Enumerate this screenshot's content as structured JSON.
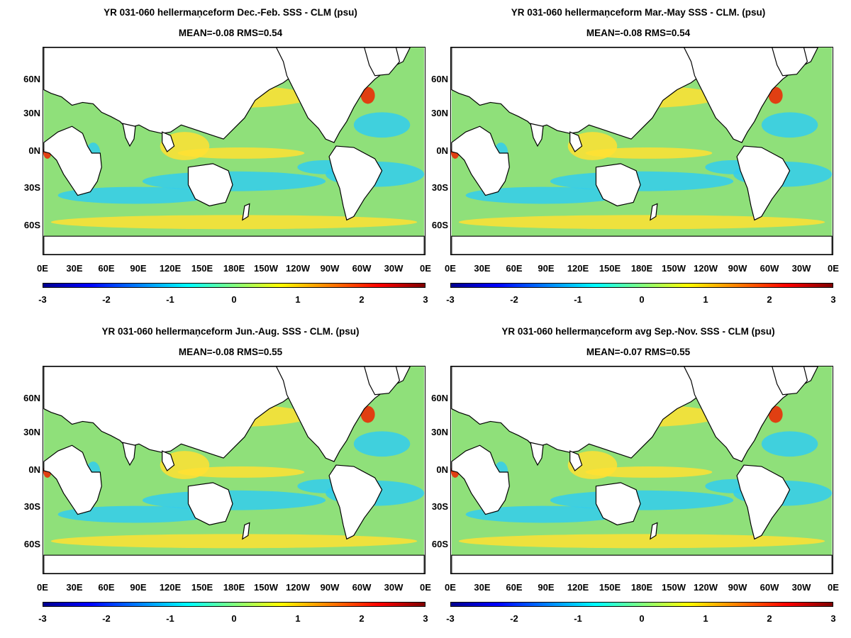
{
  "panels": [
    {
      "title": "YR 031-060 hellermaṇceform  Dec.-Feb. SSS - CLM (psu)",
      "stats": "MEAN=-0.08   RMS=0.54"
    },
    {
      "title": "YR 031-060 hellermaṇceform Mar.-May SSS - CLM. (psu)",
      "stats": "MEAN=-0.08   RMS=0.54"
    },
    {
      "title": "YR 031-060 hellermaṇceform Jun.-Aug. SSS - CLM. (psu)",
      "stats": "MEAN=-0.08   RMS=0.55"
    },
    {
      "title": "YR 031-060 hellermaṇceform avg Sep.-Nov. SSS - CLM (psu)",
      "stats": "MEAN=-0.07   RMS=0.55"
    }
  ],
  "lat_labels": [
    "60N",
    "30N",
    "0N",
    "30S",
    "60S"
  ],
  "lon_labels": [
    "0E",
    "30E",
    "60E",
    "90E",
    "120E",
    "150E",
    "180E",
    "150W",
    "120W",
    "90W",
    "60W",
    "30W",
    "0E"
  ],
  "colorbar_ticks": [
    "-3",
    "-2",
    "-1",
    "0",
    "1",
    "2",
    "3"
  ],
  "colors": {
    "ocean_base": "#8fe07a",
    "fresh": "#33ccee",
    "salty": "#ffe033",
    "high": "#ee2200",
    "land": "#ffffff"
  }
}
